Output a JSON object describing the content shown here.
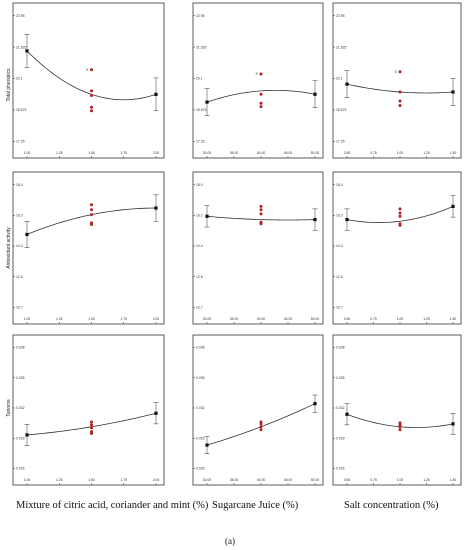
{
  "caption": "(a)",
  "x_titles": [
    "Mixture of citric acid, coriander and mint (%)",
    "Sugarcane Juice (%)",
    "Salt concentration (%)"
  ],
  "y_titles": [
    "Total phenolics",
    "Antioxidant activity",
    "Tannins"
  ],
  "chart_data": [
    {
      "type": "line",
      "row": 0,
      "col": 0,
      "ylabel": "Total phenolics",
      "xlim": [
        1.0,
        2.0
      ],
      "ylim": [
        17.25,
        23.0
      ],
      "xticks": [
        "1.00",
        "1.25",
        "1.50",
        "1.75",
        "2.00"
      ],
      "yticks": [
        "17.25",
        "18.675",
        "20.1",
        "21.525",
        "22.95"
      ],
      "curve": {
        "x": [
          1.0,
          1.5,
          2.0
        ],
        "y": [
          21.3,
          19.45,
          19.45
        ]
      },
      "design_points": [
        {
          "x": 1.0,
          "y": 21.3,
          "err": 0.7
        },
        {
          "x": 2.0,
          "y": 19.45,
          "err": 0.7
        }
      ],
      "center_points": [
        {
          "x": 1.5,
          "y": 19.6
        },
        {
          "x": 1.5,
          "y": 19.4
        },
        {
          "x": 1.5,
          "y": 18.9
        },
        {
          "x": 1.5,
          "y": 18.75
        },
        {
          "x": 1.5,
          "y": 20.5
        }
      ],
      "center_label": "5"
    },
    {
      "type": "line",
      "row": 0,
      "col": 1,
      "ylabel": "",
      "xlim": [
        30.0,
        50.0
      ],
      "ylim": [
        17.0,
        23.0
      ],
      "xticks": [
        "30.00",
        "35.00",
        "40.00",
        "45.00",
        "50.00"
      ],
      "yticks": [
        "17.25",
        "18.675",
        "20.1",
        "21.525",
        "22.95"
      ],
      "curve": {
        "x": [
          30.0,
          40.0,
          50.0
        ],
        "y": [
          18.95,
          19.45,
          19.3
        ]
      },
      "design_points": [
        {
          "x": 30.0,
          "y": 18.95,
          "err": 0.6
        },
        {
          "x": 50.0,
          "y": 19.3,
          "err": 0.6
        }
      ],
      "center_points": [
        {
          "x": 40.0,
          "y": 19.3
        },
        {
          "x": 40.0,
          "y": 18.9
        },
        {
          "x": 40.0,
          "y": 18.75
        },
        {
          "x": 40.0,
          "y": 20.2
        }
      ],
      "center_label": "5"
    },
    {
      "type": "line",
      "row": 0,
      "col": 2,
      "ylabel": "",
      "xlim": [
        0.5,
        1.5
      ],
      "ylim": [
        17.0,
        23.0
      ],
      "xticks": [
        "0.50",
        "0.75",
        "1.00",
        "1.25",
        "1.50"
      ],
      "yticks": [
        "17.25",
        "18.675",
        "20.1",
        "21.525",
        "22.95"
      ],
      "curve": {
        "x": [
          0.5,
          1.0,
          1.5
        ],
        "y": [
          19.75,
          19.4,
          19.4
        ]
      },
      "design_points": [
        {
          "x": 0.5,
          "y": 19.75,
          "err": 0.6
        },
        {
          "x": 1.5,
          "y": 19.4,
          "err": 0.6
        }
      ],
      "center_points": [
        {
          "x": 1.0,
          "y": 19.4
        },
        {
          "x": 1.0,
          "y": 19.0
        },
        {
          "x": 1.0,
          "y": 18.8
        },
        {
          "x": 1.0,
          "y": 20.3
        }
      ],
      "center_label": "5"
    },
    {
      "type": "line",
      "row": 1,
      "col": 0,
      "ylabel": "Antioxidant activity",
      "xlim": [
        1.0,
        2.0
      ],
      "ylim": [
        10.5,
        18.5
      ],
      "xticks": [
        "1.00",
        "1.25",
        "1.50",
        "1.75",
        "2.00"
      ],
      "yticks": [
        "10.7",
        "12.6",
        "14.4",
        "16.2",
        "18.0"
      ],
      "curve": {
        "x": [
          1.0,
          1.5,
          2.0
        ],
        "y": [
          15.2,
          16.4,
          16.8
        ]
      },
      "design_points": [
        {
          "x": 1.0,
          "y": 15.2,
          "err": 0.8
        },
        {
          "x": 2.0,
          "y": 16.8,
          "err": 0.8
        }
      ],
      "center_points": [
        {
          "x": 1.5,
          "y": 17.0
        },
        {
          "x": 1.5,
          "y": 16.7
        },
        {
          "x": 1.5,
          "y": 16.4
        },
        {
          "x": 1.5,
          "y": 15.9
        },
        {
          "x": 1.5,
          "y": 15.8
        }
      ],
      "center_label": ""
    },
    {
      "type": "line",
      "row": 1,
      "col": 1,
      "ylabel": "",
      "xlim": [
        30.0,
        50.0
      ],
      "ylim": [
        10.5,
        18.5
      ],
      "xticks": [
        "30.00",
        "35.00",
        "40.00",
        "45.00",
        "50.00"
      ],
      "yticks": [
        "10.7",
        "12.6",
        "14.4",
        "16.2",
        "18.0"
      ],
      "curve": {
        "x": [
          30.0,
          40.0,
          50.0
        ],
        "y": [
          16.3,
          16.1,
          16.1
        ]
      },
      "design_points": [
        {
          "x": 30.0,
          "y": 16.3,
          "err": 0.65
        },
        {
          "x": 50.0,
          "y": 16.1,
          "err": 0.65
        }
      ],
      "center_points": [
        {
          "x": 40.0,
          "y": 16.9
        },
        {
          "x": 40.0,
          "y": 16.7
        },
        {
          "x": 40.0,
          "y": 16.45
        },
        {
          "x": 40.0,
          "y": 15.95
        },
        {
          "x": 40.0,
          "y": 15.85
        }
      ],
      "center_label": ""
    },
    {
      "type": "line",
      "row": 1,
      "col": 2,
      "ylabel": "",
      "xlim": [
        0.5,
        1.5
      ],
      "ylim": [
        10.5,
        18.5
      ],
      "xticks": [
        "0.50",
        "0.75",
        "1.00",
        "1.25",
        "1.50"
      ],
      "yticks": [
        "10.7",
        "12.6",
        "14.4",
        "16.2",
        "18.0"
      ],
      "curve": {
        "x": [
          0.5,
          1.0,
          1.5
        ],
        "y": [
          16.1,
          16.0,
          16.9
        ]
      },
      "design_points": [
        {
          "x": 0.5,
          "y": 16.1,
          "err": 0.65
        },
        {
          "x": 1.5,
          "y": 16.9,
          "err": 0.65
        }
      ],
      "center_points": [
        {
          "x": 1.0,
          "y": 16.75
        },
        {
          "x": 1.0,
          "y": 16.5
        },
        {
          "x": 1.0,
          "y": 16.3
        },
        {
          "x": 1.0,
          "y": 15.85
        },
        {
          "x": 1.0,
          "y": 15.75
        }
      ],
      "center_label": ""
    },
    {
      "type": "line",
      "row": 2,
      "col": 0,
      "ylabel": "Tannins",
      "xlim": [
        1.0,
        2.0
      ],
      "ylim": [
        0.025,
        0.0385
      ],
      "xticks": [
        "1.00",
        "1.25",
        "1.50",
        "1.75",
        "2.00"
      ],
      "yticks": [
        "0.026",
        "0.029",
        "0.032",
        "0.035",
        "0.038"
      ],
      "curve": {
        "x": [
          1.0,
          1.5,
          2.0
        ],
        "y": [
          0.02895,
          0.0298,
          0.0312
        ]
      },
      "design_points": [
        {
          "x": 1.0,
          "y": 0.02895,
          "err": 0.0011
        },
        {
          "x": 2.0,
          "y": 0.0312,
          "err": 0.0011
        }
      ],
      "center_points": [
        {
          "x": 1.5,
          "y": 0.0303
        },
        {
          "x": 1.5,
          "y": 0.03
        },
        {
          "x": 1.5,
          "y": 0.0297
        },
        {
          "x": 1.5,
          "y": 0.0293
        },
        {
          "x": 1.5,
          "y": 0.0291
        }
      ],
      "center_label": ""
    },
    {
      "type": "line",
      "row": 2,
      "col": 1,
      "ylabel": "",
      "xlim": [
        30.0,
        50.0
      ],
      "ylim": [
        0.025,
        0.0385
      ],
      "xticks": [
        "30.00",
        "35.00",
        "40.00",
        "45.00",
        "50.00"
      ],
      "yticks": [
        "0.026",
        "0.029",
        "0.032",
        "0.035",
        "0.038"
      ],
      "curve": {
        "x": [
          30.0,
          40.0,
          50.0
        ],
        "y": [
          0.0279,
          0.0298,
          0.0322
        ]
      },
      "design_points": [
        {
          "x": 30.0,
          "y": 0.0279,
          "err": 0.0009
        },
        {
          "x": 50.0,
          "y": 0.0322,
          "err": 0.0009
        }
      ],
      "center_points": [
        {
          "x": 40.0,
          "y": 0.0303
        },
        {
          "x": 40.0,
          "y": 0.0301
        },
        {
          "x": 40.0,
          "y": 0.0298
        },
        {
          "x": 40.0,
          "y": 0.0295
        }
      ],
      "center_label": ""
    },
    {
      "type": "line",
      "row": 2,
      "col": 2,
      "ylabel": "",
      "xlim": [
        0.5,
        1.5
      ],
      "ylim": [
        0.025,
        0.0385
      ],
      "xticks": [
        "0.50",
        "0.75",
        "1.00",
        "1.25",
        "1.50"
      ],
      "yticks": [
        "0.026",
        "0.029",
        "0.032",
        "0.035",
        "0.038"
      ],
      "curve": {
        "x": [
          0.5,
          1.0,
          1.5
        ],
        "y": [
          0.0311,
          0.0298,
          0.0301
        ]
      },
      "design_points": [
        {
          "x": 0.5,
          "y": 0.0311,
          "err": 0.0011
        },
        {
          "x": 1.5,
          "y": 0.0301,
          "err": 0.0011
        }
      ],
      "center_points": [
        {
          "x": 1.0,
          "y": 0.0302
        },
        {
          "x": 1.0,
          "y": 0.03
        },
        {
          "x": 1.0,
          "y": 0.0298
        },
        {
          "x": 1.0,
          "y": 0.0295
        }
      ],
      "center_label": ""
    }
  ]
}
